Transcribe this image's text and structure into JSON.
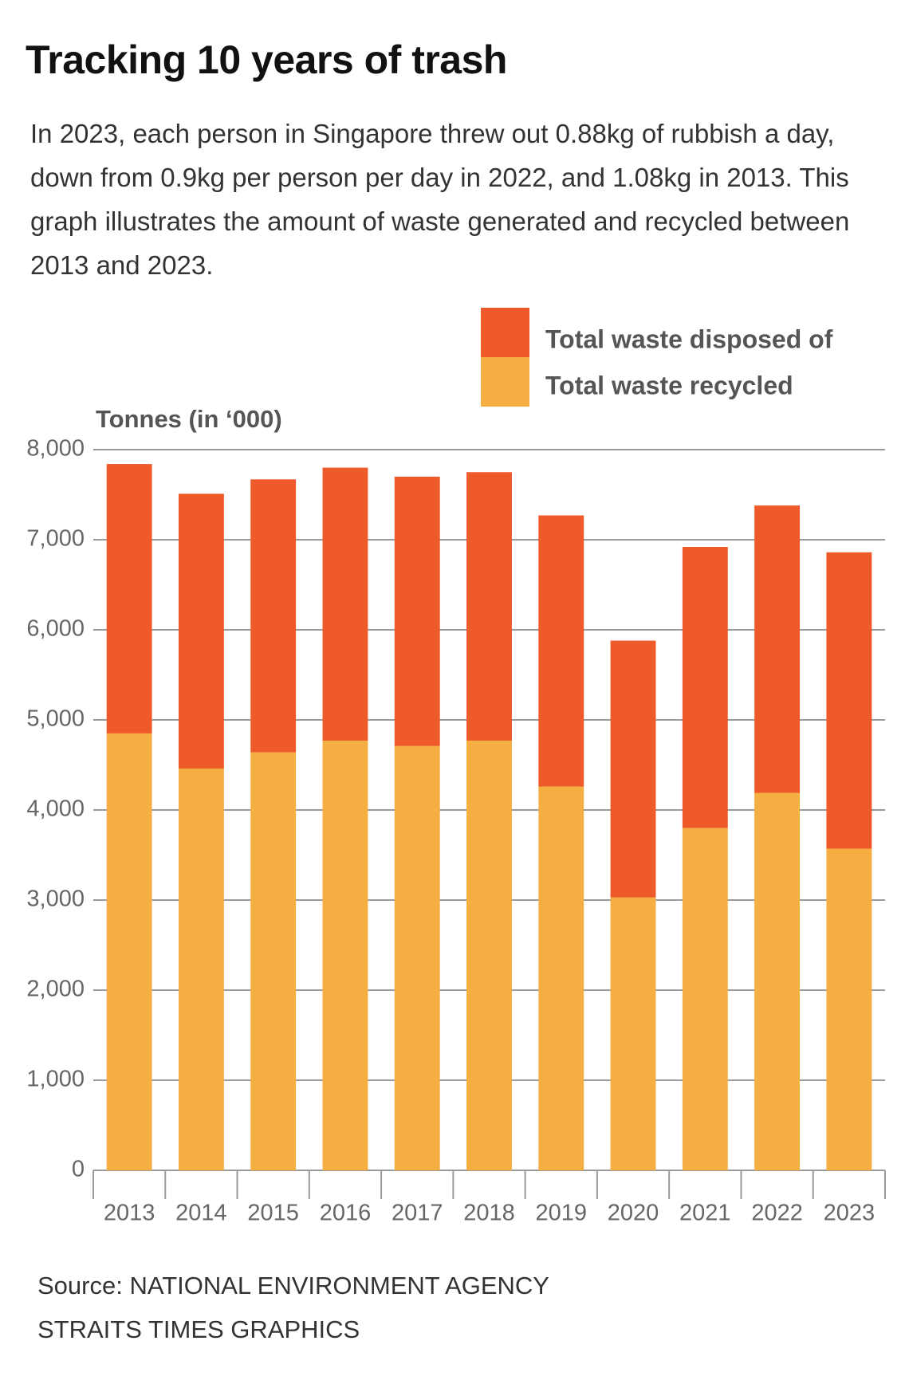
{
  "chart_data": {
    "type": "stacked_bar",
    "title": "Tracking 10 years of trash",
    "subtitle": "In 2023, each person in Singapore threw out 0.88kg of rubbish a day, down from 0.9kg per person per day in 2022, and 1.08kg in 2013. This graph illustrates the amount of waste generated and recycled between 2013 and 2023.",
    "y_label": "Tonnes (in ‘000)",
    "categories": [
      "2013",
      "2014",
      "2015",
      "2016",
      "2017",
      "2018",
      "2019",
      "2020",
      "2021",
      "2022",
      "2023"
    ],
    "series": [
      {
        "name": "Total waste disposed of",
        "color": "#ee5a2a",
        "values": [
          2990,
          3050,
          3030,
          3030,
          2990,
          2980,
          3010,
          2850,
          3120,
          3190,
          3290
        ]
      },
      {
        "name": "Total waste recycled",
        "color": "#f5ae41",
        "values": [
          4850,
          4460,
          4640,
          4770,
          4710,
          4770,
          4260,
          3030,
          3800,
          4190,
          3570
        ]
      }
    ],
    "ylim": [
      0,
      8000
    ],
    "yticks": [
      0,
      {
        "value": 1000,
        "label": "1,000"
      },
      {
        "value": 2000,
        "label": "2,000"
      },
      {
        "value": 3000,
        "label": "3,000"
      },
      {
        "value": 4000,
        "label": "4,000"
      },
      {
        "value": 5000,
        "label": "5,000"
      },
      {
        "value": 6000,
        "label": "6,000"
      },
      {
        "value": 7000,
        "label": "7,000"
      },
      {
        "value": 8000,
        "label": "8,000"
      }
    ],
    "grid": true,
    "source": "Source: NATIONAL ENVIRONMENT AGENCY",
    "credit": "STRAITS TIMES GRAPHICS"
  }
}
